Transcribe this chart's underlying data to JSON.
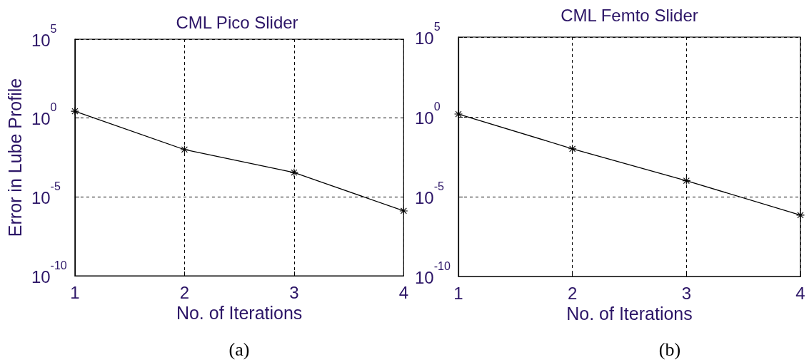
{
  "chart_data": [
    {
      "type": "line",
      "title": "CML Pico Slider",
      "xlabel": "No. of Iterations",
      "ylabel": "Error in Lube Profile",
      "x": [
        1,
        2,
        3,
        4
      ],
      "values": [
        2.7,
        0.01,
        0.00035,
        1.3e-06
      ],
      "color": "#000000",
      "xlim": [
        1,
        4
      ],
      "xticks": [
        1,
        2,
        3,
        4
      ],
      "ylim": [
        1e-10,
        100000
      ],
      "yticks": [
        {
          "value": 1e-10,
          "label": "10$^{-10}$"
        },
        {
          "value": 1e-05,
          "label": "10$^{-5}$"
        },
        {
          "value": 1,
          "label": "10$^{0}$"
        },
        {
          "value": 100000,
          "label": "10$^{5}$"
        }
      ],
      "log": "y",
      "grid": true,
      "marker": "star",
      "line_style": "solid",
      "annotations": [
        "(a)"
      ]
    },
    {
      "type": "line",
      "title": "CML Femto Slider",
      "xlabel": "No. of Iterations",
      "x": [
        1,
        2,
        3,
        4
      ],
      "values": [
        1.5,
        0.01,
        0.0001,
        7e-07
      ],
      "color": "#000000",
      "xlim": [
        1,
        4
      ],
      "xticks": [
        1,
        2,
        3,
        4
      ],
      "ylim": [
        1e-10,
        100000
      ],
      "yticks": [
        {
          "value": 1e-10,
          "label": "10$^{-10}$"
        },
        {
          "value": 1e-05,
          "label": "10$^{-5}$"
        },
        {
          "value": 1,
          "label": "10$^{0}$"
        },
        {
          "value": 100000,
          "label": "10$^{5}$"
        }
      ],
      "log": "y",
      "grid": true,
      "marker": "star",
      "line_style": "solid",
      "annotations": [
        "(b)"
      ]
    }
  ]
}
